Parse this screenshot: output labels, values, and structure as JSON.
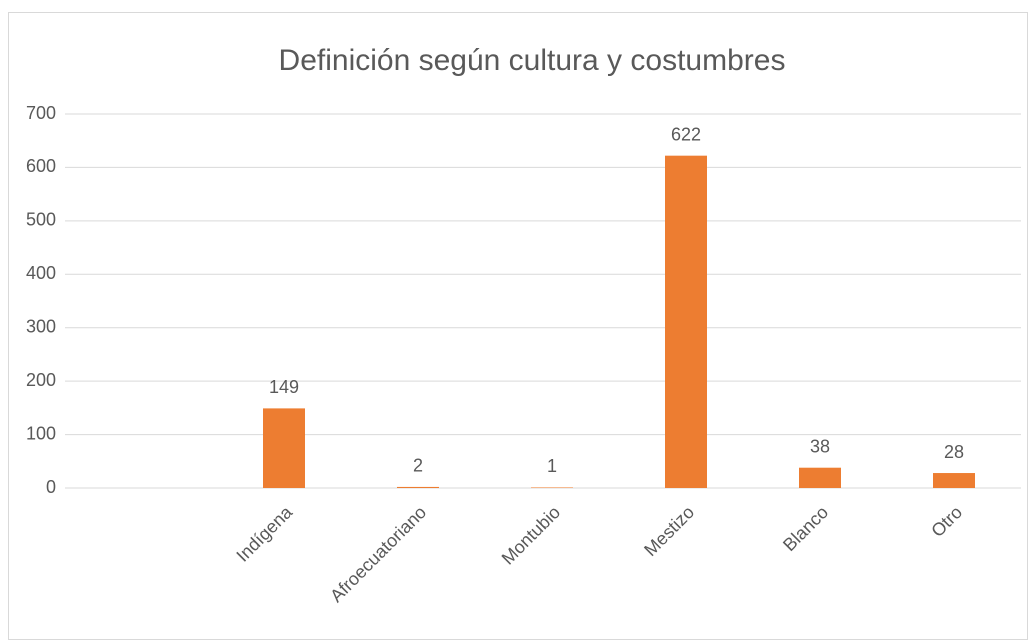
{
  "chart_data": {
    "type": "bar",
    "title": "Definición según cultura y costumbres",
    "categories": [
      null,
      "Indígena",
      "Afroecuatoriano",
      "Montubio",
      "Mestizo",
      "Blanco",
      "Otro"
    ],
    "values": [
      null,
      149,
      2,
      1,
      622,
      38,
      28
    ],
    "color": "#ed7d31",
    "ylim": [
      0,
      700
    ],
    "yticks": [
      0,
      100,
      200,
      300,
      400,
      500,
      600,
      700
    ],
    "grid": true,
    "data_labels": true
  }
}
